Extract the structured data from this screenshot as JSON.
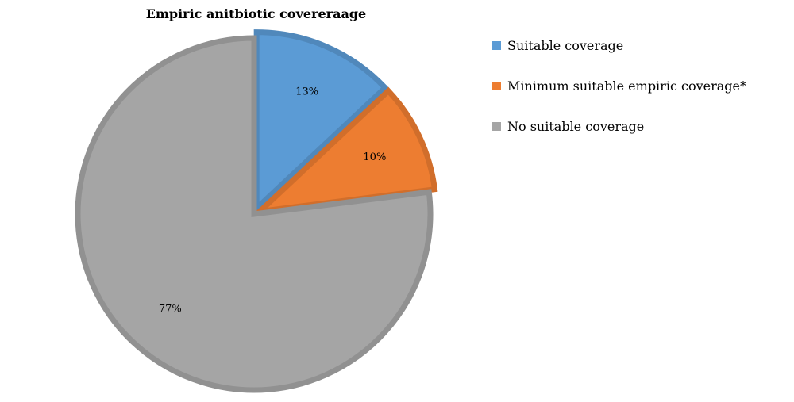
{
  "chart_data": {
    "type": "pie",
    "title": "Empiric anitbiotic covereraage",
    "slices": [
      {
        "label": "Suitable coverage",
        "value": 13,
        "display": "13%",
        "color": "#5B9BD5",
        "exploded": true
      },
      {
        "label": "Minimum suitable empiric coverage*",
        "value": 10,
        "display": "10%",
        "color": "#ED7D31",
        "exploded": true
      },
      {
        "label": "No suitable coverage",
        "value": 77,
        "display": "77%",
        "color": "#A5A5A5",
        "exploded": false
      }
    ],
    "legend_position": "right"
  }
}
